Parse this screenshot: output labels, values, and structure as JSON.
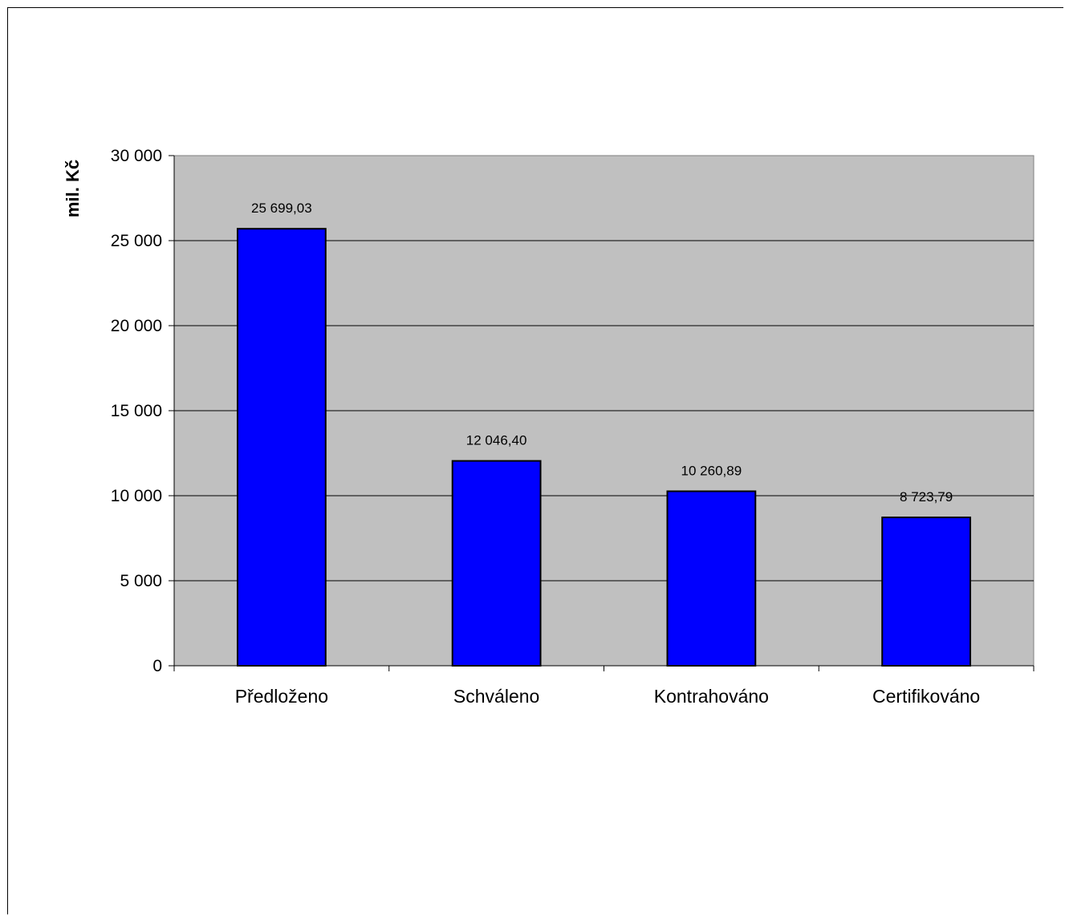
{
  "chart_data": {
    "type": "bar",
    "title": "",
    "xlabel": "",
    "ylabel": "mil. Kč",
    "categories": [
      "Předloženo",
      "Schváleno",
      "Kontrahováno",
      "Certifikováno"
    ],
    "values": [
      25699.03,
      12046.4,
      10260.89,
      8723.79
    ],
    "data_labels": [
      "25 699,03",
      "12 046,40",
      "10 260,89",
      "8 723,79"
    ],
    "ylim": [
      0,
      30000
    ],
    "yticks": [
      0,
      5000,
      10000,
      15000,
      20000,
      25000,
      30000
    ],
    "ytick_labels": [
      "0",
      "5 000",
      "10 000",
      "15 000",
      "20 000",
      "25 000",
      "30 000"
    ],
    "grid": true,
    "legend": "none",
    "colors": {
      "bar_fill": "#0000ff",
      "bar_stroke": "#000000",
      "plot_background": "#c0c0c0",
      "gridline": "#000000"
    }
  }
}
